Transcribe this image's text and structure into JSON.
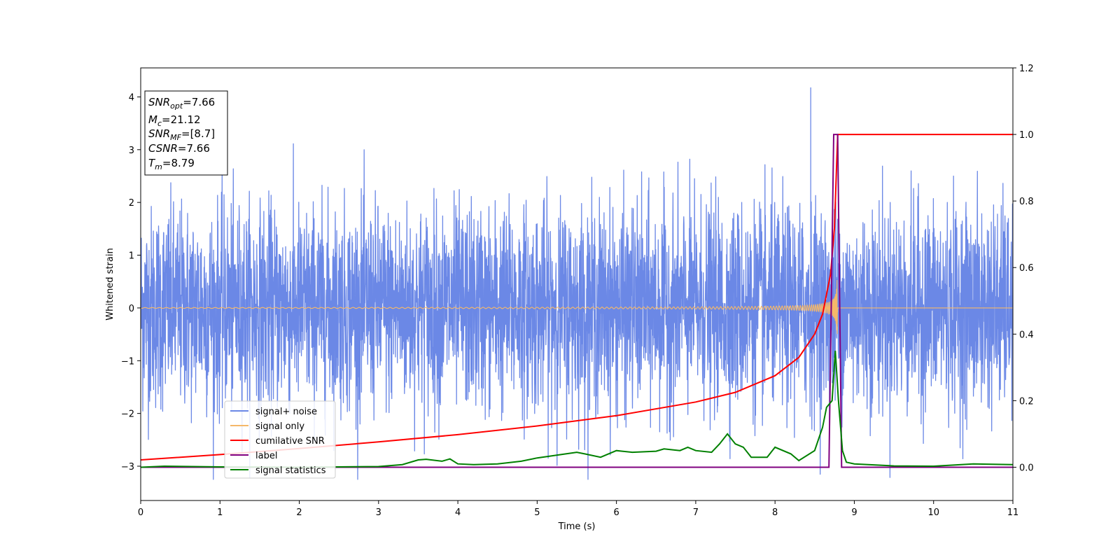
{
  "chart_data": {
    "type": "line",
    "xlabel": "Time (s)",
    "ylabel": "Whitened strain",
    "x_range": [
      0,
      11
    ],
    "y_left_range": [
      -3.65,
      4.55
    ],
    "y_right_range": [
      -0.1,
      1.2
    ],
    "x_ticks": [
      "0",
      "1",
      "2",
      "3",
      "4",
      "5",
      "6",
      "7",
      "8",
      "9",
      "10",
      "11"
    ],
    "x_tick_values": [
      0,
      1,
      2,
      3,
      4,
      5,
      6,
      7,
      8,
      9,
      10,
      11
    ],
    "y_left_ticks": [
      "4",
      "3",
      "2",
      "1",
      "0",
      "−1",
      "−2",
      "−3"
    ],
    "y_left_tick_values": [
      4,
      3,
      2,
      1,
      0,
      -1,
      -2,
      -3
    ],
    "y_right_ticks": [
      "1.2",
      "1.0",
      "0.8",
      "0.6",
      "0.4",
      "0.2",
      "0.0"
    ],
    "y_right_tick_values": [
      1.2,
      1.0,
      0.8,
      0.6,
      0.4,
      0.2,
      0.0
    ],
    "grid": false,
    "legend_placement": "lower-left",
    "series": [
      {
        "name": "signal+ noise",
        "color": "#6b88e6",
        "axis": "left",
        "description_amplitude": 1.0,
        "peak": 4.18,
        "peak_time": 8.45
      },
      {
        "name": "signal only",
        "color": "#f5b86a",
        "axis": "left",
        "merger_time": 8.79,
        "peak_amplitude": 0.62
      },
      {
        "name": "cumilative SNR",
        "color": "#ff0000",
        "axis": "right",
        "x": [
          0,
          1,
          2,
          3,
          4,
          5,
          6,
          7,
          7.5,
          8,
          8.3,
          8.5,
          8.6,
          8.7,
          8.75,
          8.78,
          8.79,
          11
        ],
        "y": [
          0.022,
          0.038,
          0.056,
          0.076,
          0.098,
          0.124,
          0.155,
          0.196,
          0.225,
          0.275,
          0.33,
          0.4,
          0.46,
          0.58,
          0.72,
          0.93,
          1.0,
          1.0
        ]
      },
      {
        "name": "label",
        "color": "#800080",
        "axis": "right",
        "x": [
          0,
          8.68,
          8.74,
          8.79,
          8.84,
          11
        ],
        "y": [
          0.0,
          0.0,
          1.0,
          1.0,
          0.0,
          0.0
        ]
      },
      {
        "name": "signal statistics",
        "color": "#008000",
        "axis": "right",
        "x": [
          0,
          0.3,
          1,
          2,
          3,
          3.3,
          3.5,
          3.6,
          3.8,
          3.9,
          4.0,
          4.2,
          4.5,
          4.8,
          5.0,
          5.3,
          5.5,
          5.6,
          5.8,
          6.0,
          6.2,
          6.5,
          6.6,
          6.8,
          6.9,
          7.0,
          7.2,
          7.3,
          7.4,
          7.5,
          7.6,
          7.7,
          7.9,
          8.0,
          8.2,
          8.3,
          8.5,
          8.6,
          8.65,
          8.72,
          8.76,
          8.8,
          8.85,
          8.9,
          9.0,
          9.5,
          10.0,
          10.5,
          11
        ],
        "y": [
          0.0,
          0.003,
          0.001,
          0.0,
          0.002,
          0.008,
          0.022,
          0.024,
          0.018,
          0.025,
          0.01,
          0.008,
          0.01,
          0.018,
          0.028,
          0.038,
          0.045,
          0.04,
          0.03,
          0.05,
          0.045,
          0.048,
          0.055,
          0.05,
          0.06,
          0.05,
          0.045,
          0.07,
          0.1,
          0.07,
          0.06,
          0.03,
          0.03,
          0.06,
          0.04,
          0.02,
          0.05,
          0.12,
          0.18,
          0.2,
          0.35,
          0.2,
          0.05,
          0.015,
          0.01,
          0.004,
          0.003,
          0.01,
          0.008
        ]
      }
    ],
    "annotations": [
      {
        "label": "SNR",
        "sub": "opt",
        "value": "=7.66"
      },
      {
        "label": "M",
        "sub": "c",
        "value": "=21.12"
      },
      {
        "label": "SNR",
        "sub": "MF",
        "value": "=[8.7]"
      },
      {
        "label": "CSNR",
        "sub": "",
        "value": "=7.66"
      },
      {
        "label": "T",
        "sub": "m",
        "value": "=8.79"
      }
    ]
  }
}
